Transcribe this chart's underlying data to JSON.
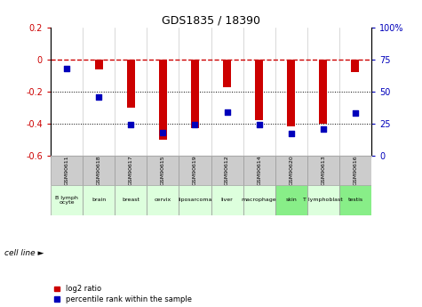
{
  "title": "GDS1835 / 18390",
  "samples": [
    "GSM90611",
    "GSM90618",
    "GSM90617",
    "GSM90615",
    "GSM90619",
    "GSM90612",
    "GSM90614",
    "GSM90620",
    "GSM90613",
    "GSM90616"
  ],
  "cell_lines": [
    "B lymph\nocyte",
    "brain",
    "breast",
    "cervix",
    "liposarcoma",
    "liver",
    "macrophage",
    "skin",
    "T lymphoblast",
    "testis"
  ],
  "cell_line_colors": [
    "#ddffdd",
    "#ddffdd",
    "#ddffdd",
    "#ddffdd",
    "#ddffdd",
    "#ddffdd",
    "#ddffdd",
    "#88ee88",
    "#ddffdd",
    "#88ee88"
  ],
  "log2_ratio": [
    0.0,
    -0.06,
    -0.3,
    -0.5,
    -0.43,
    -0.17,
    -0.38,
    -0.42,
    -0.4,
    -0.08
  ],
  "percentile_rank": [
    68,
    46,
    24,
    18,
    24,
    34,
    24,
    17,
    21,
    33
  ],
  "ylim_left": [
    -0.6,
    0.2
  ],
  "ylim_right": [
    0,
    100
  ],
  "bar_color": "#cc0000",
  "dot_color": "#0000bb",
  "bar_width": 0.25,
  "legend_items": [
    "log2 ratio",
    "percentile rank within the sample"
  ],
  "legend_colors": [
    "#cc0000",
    "#0000bb"
  ],
  "sample_col_color": "#cccccc",
  "cell_line_label": "cell line"
}
